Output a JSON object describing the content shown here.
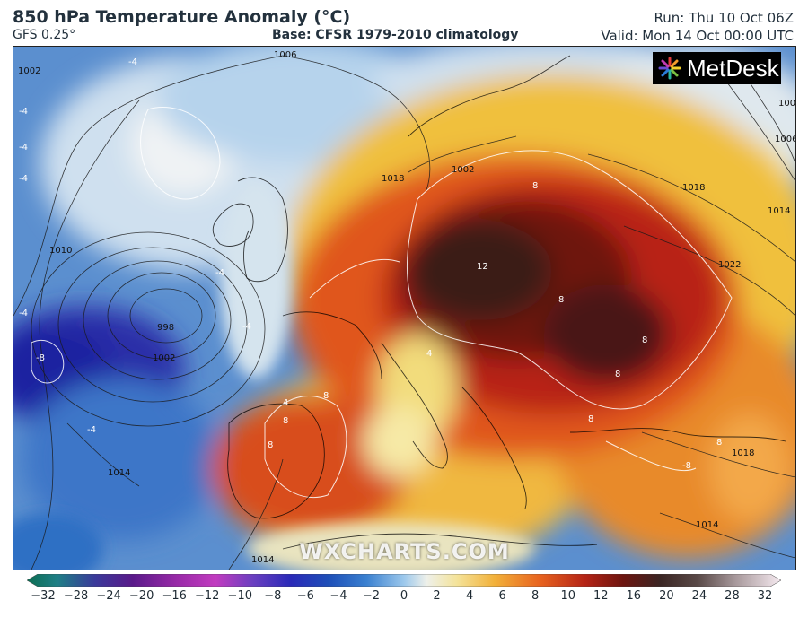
{
  "header": {
    "title": "850 hPa Temperature Anomaly (°C)",
    "model": "GFS 0.25°",
    "base": "Base: CFSR 1979-2010 climatology",
    "run": "Run: Thu 10 Oct 06Z",
    "valid": "Valid: Mon 14 Oct 00:00 UTC"
  },
  "logo": {
    "text": "MetDesk",
    "icon": "metdesk-starburst-icon"
  },
  "watermark": "WXCHARTS.COM",
  "colorbar": {
    "ticks": [
      "−32",
      "−28",
      "−24",
      "−20",
      "−16",
      "−12",
      "−10",
      "−8",
      "−6",
      "−4",
      "−2",
      "0",
      "2",
      "4",
      "6",
      "8",
      "10",
      "12",
      "16",
      "20",
      "24",
      "28",
      "32"
    ],
    "colors": [
      "#0d6e52",
      "#1f7f86",
      "#3a3a9a",
      "#5a1a8a",
      "#7b1a8e",
      "#9a2aa8",
      "#6a3fc0",
      "#2a2ab8",
      "#1e3fb0",
      "#2a66c8",
      "#4f90d8",
      "#8cc0ea",
      "#d8e6ef",
      "#f4e7a8",
      "#f2c24a",
      "#ec8b2a",
      "#d9501e",
      "#b52416",
      "#7e1510",
      "#4b1610",
      "#3b2624",
      "#5a4a48",
      "#9a8c8c",
      "#d6c8cc",
      "#f6eaf0"
    ]
  },
  "map": {
    "isobar_labels": [
      "1006",
      "1002",
      "998",
      "1002",
      "1010",
      "1018",
      "1014",
      "1022",
      "1014",
      "1002",
      "1006",
      "1018",
      "1002",
      "1014",
      "1014",
      "1018"
    ],
    "anomaly_labels": [
      "-4",
      "-4",
      "-4",
      "-4",
      "-4",
      "-4",
      "-8",
      "-4",
      "-4",
      "12",
      "8",
      "8",
      "8",
      "8",
      "8",
      "8",
      "8",
      "-8",
      "4",
      "4",
      "8",
      "8"
    ]
  }
}
